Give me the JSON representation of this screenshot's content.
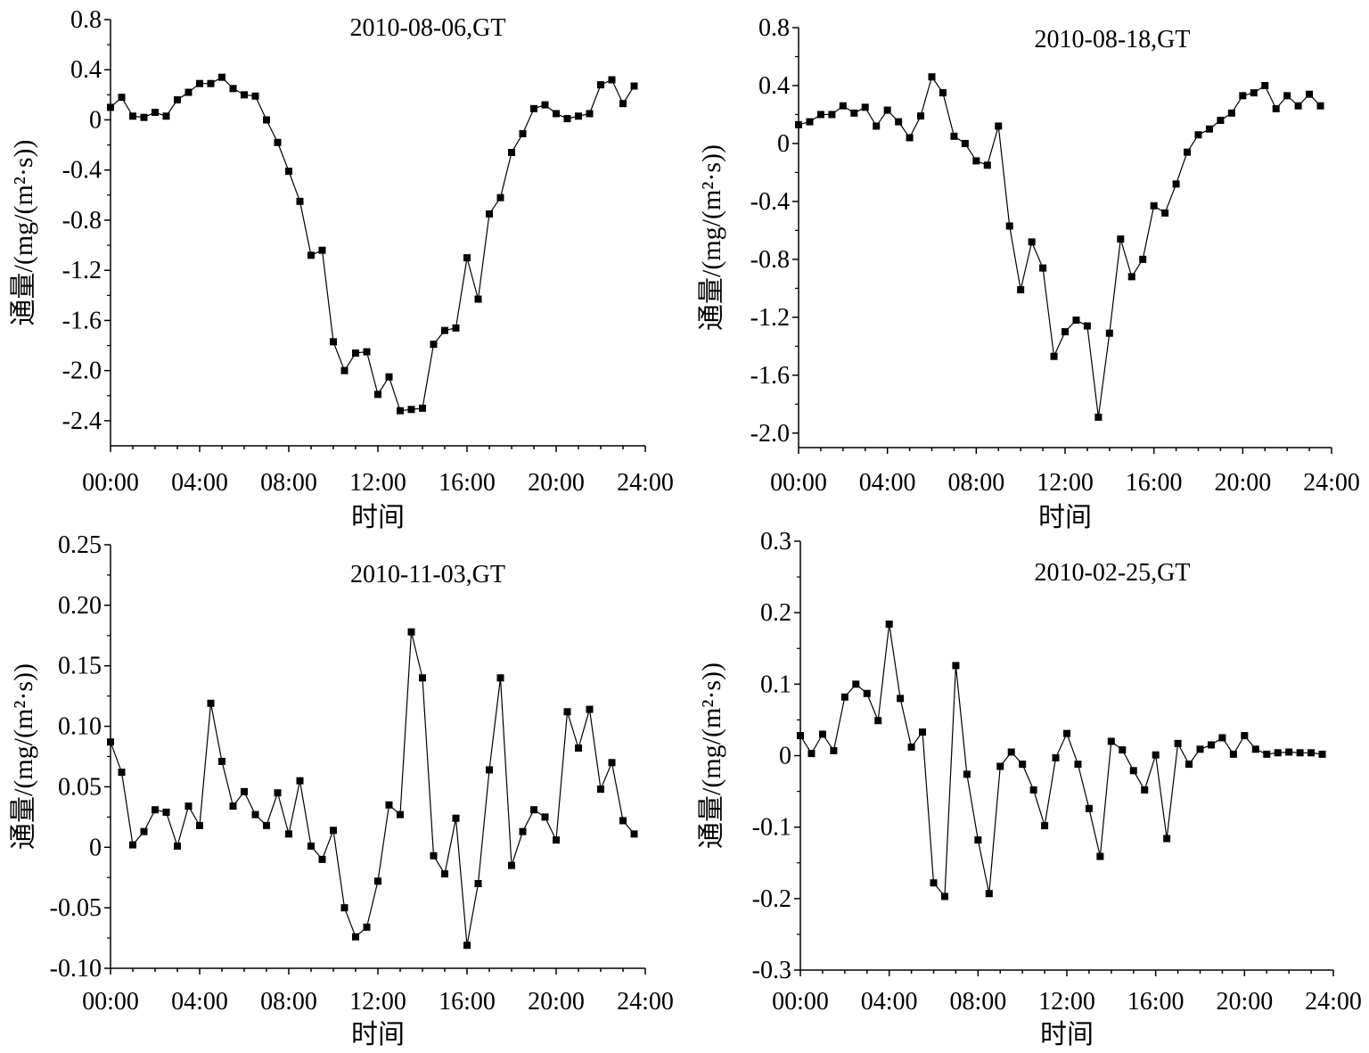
{
  "chart_data": [
    {
      "type": "line",
      "title": "2010-08-06,GT",
      "xlabel": "时间",
      "ylabel": "通量/(mg/(m²·s))",
      "x_ticks": [
        "00:00",
        "04:00",
        "08:00",
        "12:00",
        "16:00",
        "20:00",
        "24:00"
      ],
      "y_ticks": [
        "0.8",
        "0.4",
        "0",
        "-0.4",
        "-0.8",
        "-1.2",
        "-1.6",
        "-2.0",
        "-2.4"
      ],
      "xlim": [
        0,
        24
      ],
      "ylim": [
        -2.6,
        0.8
      ],
      "x_step_hours": 0.5,
      "series": [
        {
          "values": [
            0.1,
            0.18,
            0.03,
            0.02,
            0.06,
            0.03,
            0.16,
            0.22,
            0.29,
            0.29,
            0.34,
            0.25,
            0.2,
            0.19,
            0.0,
            -0.18,
            -0.41,
            -0.65,
            -1.08,
            -1.04,
            -1.77,
            -2.0,
            -1.86,
            -1.85,
            -2.19,
            -2.05,
            -2.32,
            -2.31,
            -2.3,
            -1.79,
            -1.68,
            -1.66,
            -1.1,
            -1.43,
            -0.75,
            -0.62,
            -0.26,
            -0.11,
            0.09,
            0.12,
            0.05,
            0.01,
            0.03,
            0.05,
            0.28,
            0.32,
            0.13,
            0.27
          ]
        }
      ]
    },
    {
      "type": "line",
      "title": "2010-08-18,GT",
      "xlabel": "时间",
      "ylabel": "通量/(mg/(m²·s))",
      "x_ticks": [
        "00:00",
        "04:00",
        "08:00",
        "12:00",
        "16:00",
        "20:00",
        "24:00"
      ],
      "y_ticks": [
        "0.8",
        "0.4",
        "0",
        "-0.4",
        "-0.8",
        "-1.2",
        "-1.6",
        "-2.0"
      ],
      "xlim": [
        0,
        24
      ],
      "ylim": [
        -2.1,
        0.8
      ],
      "x_step_hours": 0.5,
      "series": [
        {
          "values": [
            0.13,
            0.15,
            0.2,
            0.2,
            0.26,
            0.21,
            0.25,
            0.12,
            0.23,
            0.15,
            0.04,
            0.19,
            0.46,
            0.35,
            0.05,
            0.0,
            -0.12,
            -0.15,
            0.12,
            -0.57,
            -1.01,
            -0.68,
            -0.86,
            -1.47,
            -1.3,
            -1.22,
            -1.26,
            -1.89,
            -1.31,
            -0.66,
            -0.92,
            -0.8,
            -0.43,
            -0.48,
            -0.28,
            -0.06,
            0.06,
            0.1,
            0.16,
            0.21,
            0.33,
            0.35,
            0.4,
            0.24,
            0.33,
            0.26,
            0.34,
            0.26
          ]
        }
      ]
    },
    {
      "type": "line",
      "title": "2010-11-03,GT",
      "xlabel": "时间",
      "ylabel": "通量/(mg/(m²·s))",
      "x_ticks": [
        "00:00",
        "04:00",
        "08:00",
        "12:00",
        "16:00",
        "20:00",
        "24:00"
      ],
      "y_ticks": [
        "0.25",
        "0.20",
        "0.15",
        "0.10",
        "0.05",
        "0",
        "-0.05",
        "-0.10"
      ],
      "xlim": [
        0,
        24
      ],
      "ylim": [
        -0.1,
        0.25
      ],
      "x_step_hours": 0.5,
      "series": [
        {
          "values": [
            0.087,
            0.062,
            0.002,
            0.013,
            0.031,
            0.029,
            0.001,
            0.034,
            0.018,
            0.119,
            0.071,
            0.034,
            0.046,
            0.027,
            0.018,
            0.045,
            0.011,
            0.055,
            0.001,
            -0.01,
            0.014,
            -0.05,
            -0.074,
            -0.066,
            -0.028,
            0.035,
            0.027,
            0.178,
            0.14,
            -0.007,
            -0.022,
            0.024,
            -0.081,
            -0.03,
            0.064,
            0.14,
            -0.015,
            0.013,
            0.031,
            0.025,
            0.006,
            0.112,
            0.082,
            0.114,
            0.048,
            0.07,
            0.022,
            0.011
          ]
        }
      ]
    },
    {
      "type": "line",
      "title": "2010-02-25,GT",
      "xlabel": "时间",
      "ylabel": "通量/(mg/(m²·s))",
      "x_ticks": [
        "00:00",
        "04:00",
        "08:00",
        "12:00",
        "16:00",
        "20:00",
        "24:00"
      ],
      "y_ticks": [
        "0.3",
        "0.2",
        "0.1",
        "0",
        "-0.1",
        "-0.2",
        "-0.3"
      ],
      "xlim": [
        0,
        24
      ],
      "ylim": [
        -0.3,
        0.3
      ],
      "x_step_hours": 0.5,
      "series": [
        {
          "values": [
            0.028,
            0.003,
            0.03,
            0.007,
            0.082,
            0.1,
            0.087,
            0.049,
            0.184,
            0.08,
            0.012,
            0.033,
            -0.178,
            -0.197,
            0.126,
            -0.026,
            -0.118,
            -0.193,
            -0.015,
            0.005,
            -0.012,
            -0.048,
            -0.098,
            -0.003,
            0.031,
            -0.012,
            -0.074,
            -0.141,
            0.02,
            0.008,
            -0.021,
            -0.048,
            0.001,
            -0.116,
            0.017,
            -0.012,
            0.009,
            0.015,
            0.025,
            0.002,
            0.028,
            0.009,
            0.002,
            0.004,
            0.005,
            0.004,
            0.004,
            0.002
          ]
        }
      ]
    }
  ]
}
